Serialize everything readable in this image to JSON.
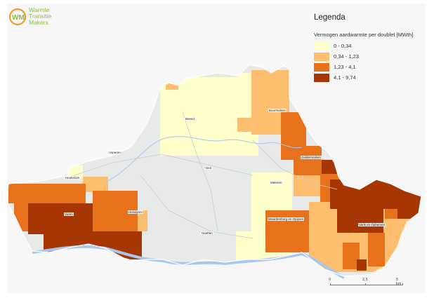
{
  "logo": {
    "line1": "Warmte",
    "line2": "Transitie",
    "line3": "Makers",
    "brand_green": "#8bbf3f",
    "brand_orange": "#f39a2b"
  },
  "legend": {
    "title": "Legenda",
    "subtitle": "Vermogen aardwarmte per doublet [MWth]",
    "classes": [
      {
        "label": "0 - 0,34",
        "color": "#ffffcc"
      },
      {
        "label": "0,34 - 1,23",
        "color": "#fdbf6f"
      },
      {
        "label": "1,23 - 4,1",
        "color": "#e8711c"
      },
      {
        "label": "4,1 - 9,74",
        "color": "#a63603"
      }
    ]
  },
  "places": {
    "bommel": "Buurmalsen",
    "beesd": "Beesd",
    "geldermalsen": "Geldermalsen",
    "asperen": "Asperen",
    "heukelum": "Heukelum",
    "deil": "Deil",
    "meteren": "Meteren",
    "vuren": "Vuren",
    "herwijnen": "Herwijnen",
    "waardenburg": "Waardenburg en Opijnen",
    "varik": "Varik en Ophemert",
    "haaften": "Haaften"
  },
  "scale": {
    "labels": [
      "0",
      "2,5",
      "5 km"
    ]
  },
  "colors": {
    "water": "#a9c7ee",
    "land": "#e8eaea"
  }
}
